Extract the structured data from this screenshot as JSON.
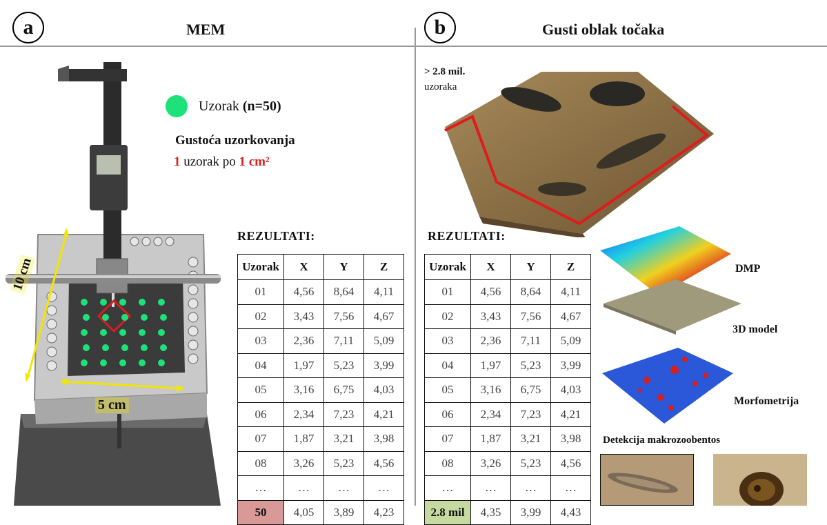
{
  "panel_a": {
    "letter": "a",
    "title": "MEM",
    "legend_label": "Uzorak",
    "legend_n": "(n=50)",
    "density_title": "Gustoća uzorkovanja",
    "density_num1": "1",
    "density_mid": " uzorak po ",
    "density_num2": "1 cm²",
    "dim_10": "10 cm",
    "dim_5": "5 cm",
    "results_title": "REZULTATI:",
    "table": {
      "headers": [
        "Uzorak",
        "X",
        "Y",
        "Z"
      ],
      "rows": [
        [
          "01",
          "4,56",
          "8,64",
          "4,11"
        ],
        [
          "02",
          "3,43",
          "7,56",
          "4,67"
        ],
        [
          "03",
          "2,36",
          "7,11",
          "5,09"
        ],
        [
          "04",
          "1,97",
          "5,23",
          "3,99"
        ],
        [
          "05",
          "3,16",
          "6,75",
          "4,03"
        ],
        [
          "06",
          "2,34",
          "7,23",
          "4,21"
        ],
        [
          "07",
          "1,87",
          "3,21",
          "3,98"
        ],
        [
          "08",
          "3,26",
          "5,23",
          "4,56"
        ],
        [
          "…",
          "…",
          "…",
          "…"
        ],
        [
          "50",
          "4,05",
          "3,89",
          "4,23"
        ]
      ],
      "last_highlight_color": "#d99a97"
    }
  },
  "panel_b": {
    "letter": "b",
    "title": "Gusti oblak točaka",
    "count_label": "> 2.8 mil.",
    "count_sub": "uzoraka",
    "results_title": "REZULTATI:",
    "layers": [
      "DMP",
      "3D model",
      "Morfometrija"
    ],
    "detection_title": "Detekcija makrozoobentos",
    "table": {
      "headers": [
        "Uzorak",
        "X",
        "Y",
        "Z"
      ],
      "rows": [
        [
          "01",
          "4,56",
          "8,64",
          "4,11"
        ],
        [
          "02",
          "3,43",
          "7,56",
          "4,67"
        ],
        [
          "03",
          "2,36",
          "7,11",
          "5,09"
        ],
        [
          "04",
          "1,97",
          "5,23",
          "3,99"
        ],
        [
          "05",
          "3,16",
          "6,75",
          "4,03"
        ],
        [
          "06",
          "2,34",
          "7,23",
          "4,21"
        ],
        [
          "07",
          "1,87",
          "3,21",
          "3,98"
        ],
        [
          "08",
          "3,26",
          "5,23",
          "4,56"
        ],
        [
          "…",
          "…",
          "…",
          "…"
        ],
        [
          "2.8 mil",
          "4,35",
          "3,99",
          "4,43"
        ]
      ],
      "last_highlight_color": "#c5d9a0"
    }
  },
  "colors": {
    "sample_dot": "#1de27a",
    "highlight_red": "#d81e1e",
    "dimension_yellow": "#f2e600"
  }
}
